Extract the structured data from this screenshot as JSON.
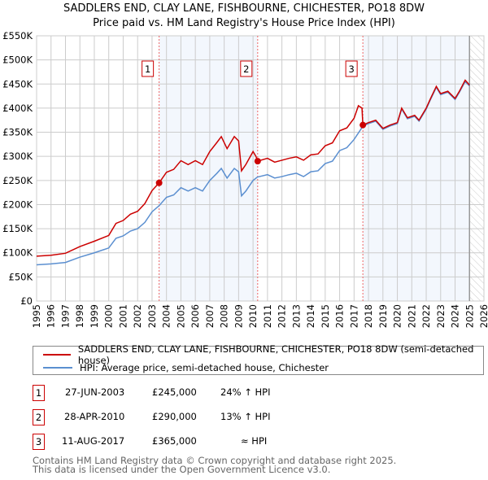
{
  "title": "SADDLERS END, CLAY LANE, FISHBOURNE, CHICHESTER, PO18 8DW",
  "subtitle": "Price paid vs. HM Land Registry's House Price Index (HPI)",
  "chart_data": {
    "type": "line",
    "xlim": [
      1995,
      2026
    ],
    "ylim": [
      0,
      550000
    ],
    "yticks": [
      0,
      50000,
      100000,
      150000,
      200000,
      250000,
      300000,
      350000,
      400000,
      450000,
      500000,
      550000
    ],
    "ytick_labels": [
      "£0",
      "£50K",
      "£100K",
      "£150K",
      "£200K",
      "£250K",
      "£300K",
      "£350K",
      "£400K",
      "£450K",
      "£500K",
      "£550K"
    ],
    "xticks": [
      "1995",
      "1996",
      "1997",
      "1998",
      "1999",
      "2000",
      "2001",
      "2002",
      "2003",
      "2004",
      "2005",
      "2006",
      "2007",
      "2008",
      "2009",
      "2010",
      "2011",
      "2012",
      "2013",
      "2014",
      "2015",
      "2016",
      "2017",
      "2018",
      "2019",
      "2020",
      "2021",
      "2022",
      "2023",
      "2024",
      "2025",
      "2026"
    ],
    "grid": true,
    "series": [
      {
        "name": "SADDLERS END, CLAY LANE, FISHBOURNE, CHICHESTER, PO18 8DW (semi-detached house)",
        "color": "#cc0000",
        "points": [
          [
            1995,
            93
          ],
          [
            1996,
            95
          ],
          [
            1997,
            99
          ],
          [
            1998,
            113
          ],
          [
            1999,
            124
          ],
          [
            2000,
            136
          ],
          [
            2000.5,
            161
          ],
          [
            2001,
            167
          ],
          [
            2001.5,
            180
          ],
          [
            2002,
            186
          ],
          [
            2002.5,
            202
          ],
          [
            2003,
            229
          ],
          [
            2003.49,
            245
          ],
          [
            2004,
            267
          ],
          [
            2004.5,
            273
          ],
          [
            2005,
            291
          ],
          [
            2005.5,
            283
          ],
          [
            2006,
            291
          ],
          [
            2006.5,
            283
          ],
          [
            2007,
            310
          ],
          [
            2007.5,
            329
          ],
          [
            2007.8,
            341
          ],
          [
            2008.2,
            316
          ],
          [
            2008.7,
            341
          ],
          [
            2009,
            332
          ],
          [
            2009.2,
            270
          ],
          [
            2009.5,
            283
          ],
          [
            2010,
            310
          ],
          [
            2010.2,
            300
          ],
          [
            2010.32,
            290
          ],
          [
            2011,
            296
          ],
          [
            2011.5,
            288
          ],
          [
            2012,
            292
          ],
          [
            2012.5,
            296
          ],
          [
            2013,
            299
          ],
          [
            2013.5,
            292
          ],
          [
            2014,
            303
          ],
          [
            2014.5,
            305
          ],
          [
            2015,
            322
          ],
          [
            2015.5,
            328
          ],
          [
            2016,
            353
          ],
          [
            2016.5,
            359
          ],
          [
            2017,
            379
          ],
          [
            2017.3,
            405
          ],
          [
            2017.55,
            400
          ],
          [
            2017.61,
            365
          ],
          [
            2018,
            370
          ],
          [
            2018.5,
            375
          ],
          [
            2019,
            358
          ],
          [
            2019.5,
            365
          ],
          [
            2020,
            370
          ],
          [
            2020.3,
            400
          ],
          [
            2020.7,
            380
          ],
          [
            2021.2,
            385
          ],
          [
            2021.5,
            375
          ],
          [
            2022,
            400
          ],
          [
            2022.3,
            420
          ],
          [
            2022.7,
            445
          ],
          [
            2023,
            430
          ],
          [
            2023.5,
            435
          ],
          [
            2024,
            420
          ],
          [
            2024.3,
            435
          ],
          [
            2024.7,
            458
          ],
          [
            2025,
            448
          ]
        ]
      },
      {
        "name": "HPI: Average price, semi-detached house, Chichester",
        "color": "#5b8fd0",
        "points": [
          [
            1995,
            75
          ],
          [
            1996,
            77
          ],
          [
            1997,
            80
          ],
          [
            1998,
            91
          ],
          [
            1999,
            100
          ],
          [
            2000,
            110
          ],
          [
            2000.5,
            130
          ],
          [
            2001,
            135
          ],
          [
            2001.5,
            145
          ],
          [
            2002,
            150
          ],
          [
            2002.5,
            163
          ],
          [
            2003,
            185
          ],
          [
            2003.5,
            198
          ],
          [
            2004,
            215
          ],
          [
            2004.5,
            220
          ],
          [
            2005,
            235
          ],
          [
            2005.5,
            228
          ],
          [
            2006,
            235
          ],
          [
            2006.5,
            228
          ],
          [
            2007,
            250
          ],
          [
            2007.5,
            265
          ],
          [
            2007.8,
            275
          ],
          [
            2008.2,
            255
          ],
          [
            2008.7,
            275
          ],
          [
            2009,
            268
          ],
          [
            2009.2,
            218
          ],
          [
            2009.5,
            228
          ],
          [
            2010,
            250
          ],
          [
            2010.3,
            257
          ],
          [
            2011,
            262
          ],
          [
            2011.5,
            255
          ],
          [
            2012,
            258
          ],
          [
            2012.5,
            262
          ],
          [
            2013,
            265
          ],
          [
            2013.5,
            258
          ],
          [
            2014,
            268
          ],
          [
            2014.5,
            270
          ],
          [
            2015,
            285
          ],
          [
            2015.5,
            290
          ],
          [
            2016,
            312
          ],
          [
            2016.5,
            318
          ],
          [
            2017,
            335
          ],
          [
            2017.6,
            362
          ],
          [
            2018,
            368
          ],
          [
            2018.5,
            373
          ],
          [
            2019,
            356
          ],
          [
            2019.5,
            363
          ],
          [
            2020,
            368
          ],
          [
            2020.3,
            398
          ],
          [
            2020.7,
            378
          ],
          [
            2021.2,
            383
          ],
          [
            2021.5,
            373
          ],
          [
            2022,
            398
          ],
          [
            2022.3,
            418
          ],
          [
            2022.7,
            443
          ],
          [
            2023,
            428
          ],
          [
            2023.5,
            433
          ],
          [
            2024,
            418
          ],
          [
            2024.3,
            433
          ],
          [
            2024.7,
            455
          ],
          [
            2025,
            446
          ]
        ]
      }
    ],
    "sales": [
      {
        "label": "1",
        "x": 2003.49,
        "y": 245000
      },
      {
        "label": "2",
        "x": 2010.32,
        "y": 290000
      },
      {
        "label": "3",
        "x": 2017.61,
        "y": 365000
      }
    ],
    "shaded_ranges": [
      [
        2003.49,
        2010.32
      ],
      [
        2017.61,
        2025.0
      ]
    ],
    "forecast_hatch_from": 2025.0,
    "legend_placement": "below"
  },
  "legend": [
    "SADDLERS END, CLAY LANE, FISHBOURNE, CHICHESTER, PO18 8DW (semi-detached house)",
    "HPI: Average price, semi-detached house, Chichester"
  ],
  "transactions": [
    {
      "n": "1",
      "date": "27-JUN-2003",
      "price": "£245,000",
      "rel": "24% ↑ HPI"
    },
    {
      "n": "2",
      "date": "28-APR-2010",
      "price": "£290,000",
      "rel": "13% ↑ HPI"
    },
    {
      "n": "3",
      "date": "11-AUG-2017",
      "price": "£365,000",
      "rel": "≈ HPI"
    }
  ],
  "footer": [
    "Contains HM Land Registry data © Crown copyright and database right 2025.",
    "This data is licensed under the Open Government Licence v3.0."
  ]
}
